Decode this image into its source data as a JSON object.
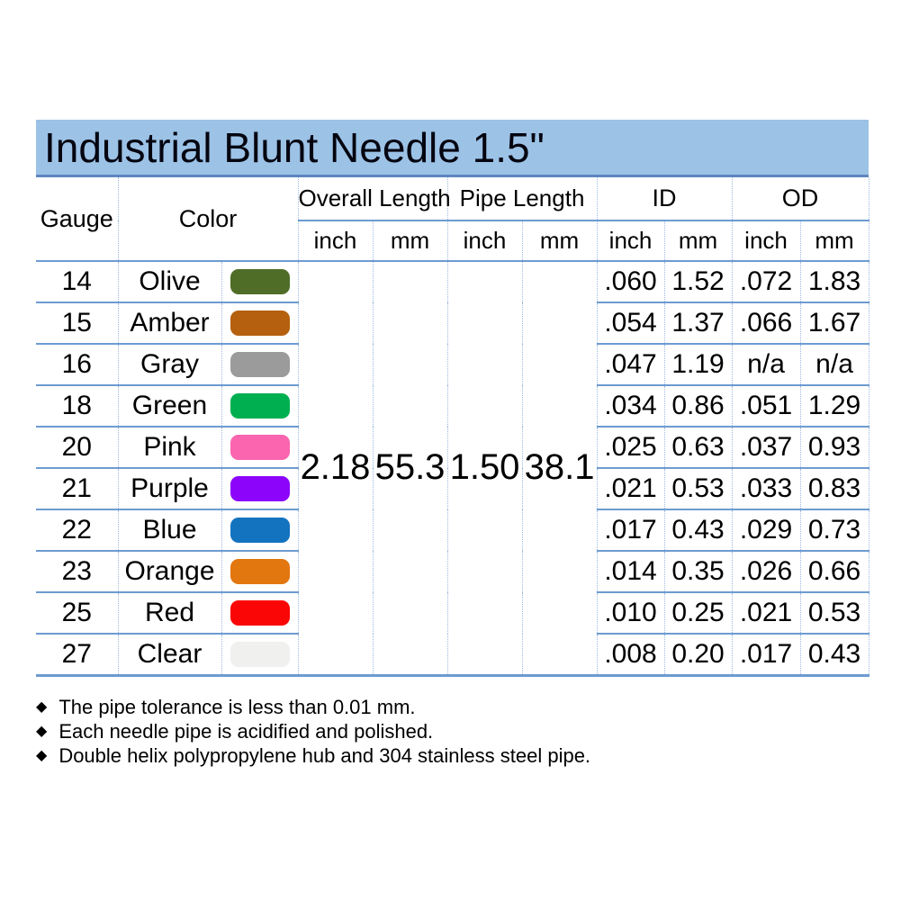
{
  "title": "Industrial Blunt Needle 1.5\"",
  "colors": {
    "title_bar_bg": "#9CC2E6",
    "solid_line": "#6D9BD1",
    "title_underline": "#5E87BF",
    "dotted_line": "#9DB9DE",
    "text": "#000000"
  },
  "table": {
    "headers": {
      "gauge": "Gauge",
      "color": "Color",
      "overall_length": "Overall Length",
      "pipe_length": "Pipe Length",
      "id": "ID",
      "od": "OD",
      "unit_inch": "inch",
      "unit_mm": "mm"
    },
    "merged": {
      "overall_inch": "2.18",
      "overall_mm": "55.3",
      "pipe_inch": "1.50",
      "pipe_mm": "38.1"
    },
    "rows": [
      {
        "gauge": "14",
        "color": "Olive",
        "swatch": "#4F6D27",
        "id_inch": ".060",
        "id_mm": "1.52",
        "od_inch": ".072",
        "od_mm": "1.83"
      },
      {
        "gauge": "15",
        "color": "Amber",
        "swatch": "#B5600E",
        "id_inch": ".054",
        "id_mm": "1.37",
        "od_inch": ".066",
        "od_mm": "1.67"
      },
      {
        "gauge": "16",
        "color": "Gray",
        "swatch": "#9B9B9B",
        "id_inch": ".047",
        "id_mm": "1.19",
        "od_inch": "n/a",
        "od_mm": "n/a"
      },
      {
        "gauge": "18",
        "color": "Green",
        "swatch": "#00AF50",
        "id_inch": ".034",
        "id_mm": "0.86",
        "od_inch": ".051",
        "od_mm": "1.29"
      },
      {
        "gauge": "20",
        "color": "Pink",
        "swatch": "#FB64AE",
        "id_inch": ".025",
        "id_mm": "0.63",
        "od_inch": ".037",
        "od_mm": "0.93"
      },
      {
        "gauge": "21",
        "color": "Purple",
        "swatch": "#8C05FA",
        "id_inch": ".021",
        "id_mm": "0.53",
        "od_inch": ".033",
        "od_mm": "0.83"
      },
      {
        "gauge": "22",
        "color": "Blue",
        "swatch": "#1373BF",
        "id_inch": ".017",
        "id_mm": "0.43",
        "od_inch": ".029",
        "od_mm": "0.73"
      },
      {
        "gauge": "23",
        "color": "Orange",
        "swatch": "#E2760F",
        "id_inch": ".014",
        "id_mm": "0.35",
        "od_inch": ".026",
        "od_mm": "0.66"
      },
      {
        "gauge": "25",
        "color": "Red",
        "swatch": "#FB0606",
        "id_inch": ".010",
        "id_mm": "0.25",
        "od_inch": ".021",
        "od_mm": "0.53"
      },
      {
        "gauge": "27",
        "color": "Clear",
        "swatch": "#F0F0EE",
        "id_inch": ".008",
        "id_mm": "0.20",
        "od_inch": ".017",
        "od_mm": "0.43"
      }
    ]
  },
  "notes": [
    "The pipe tolerance is less than 0.01 mm.",
    "Each needle pipe is acidified and polished.",
    "Double helix polypropylene hub and 304 stainless steel pipe."
  ],
  "bullet_icon": "◆"
}
